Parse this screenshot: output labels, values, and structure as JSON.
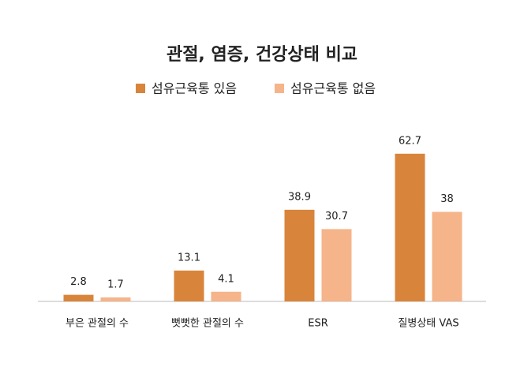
{
  "chart_data": {
    "type": "bar",
    "title": "관절, 염증, 건강상태 비교",
    "categories": [
      "부은 관절의 수",
      "뻣뻣한 관절의 수",
      "ESR",
      "질병상태 VAS"
    ],
    "series": [
      {
        "name": "섬유근육통 있음",
        "color": "#d9843b",
        "values": [
          2.8,
          13.1,
          38.9,
          62.7
        ]
      },
      {
        "name": "섬유근육통 없음",
        "color": "#f5b48a",
        "values": [
          1.7,
          4.1,
          30.7,
          38
        ]
      }
    ],
    "ylim": [
      0,
      70
    ],
    "legend": "top"
  }
}
